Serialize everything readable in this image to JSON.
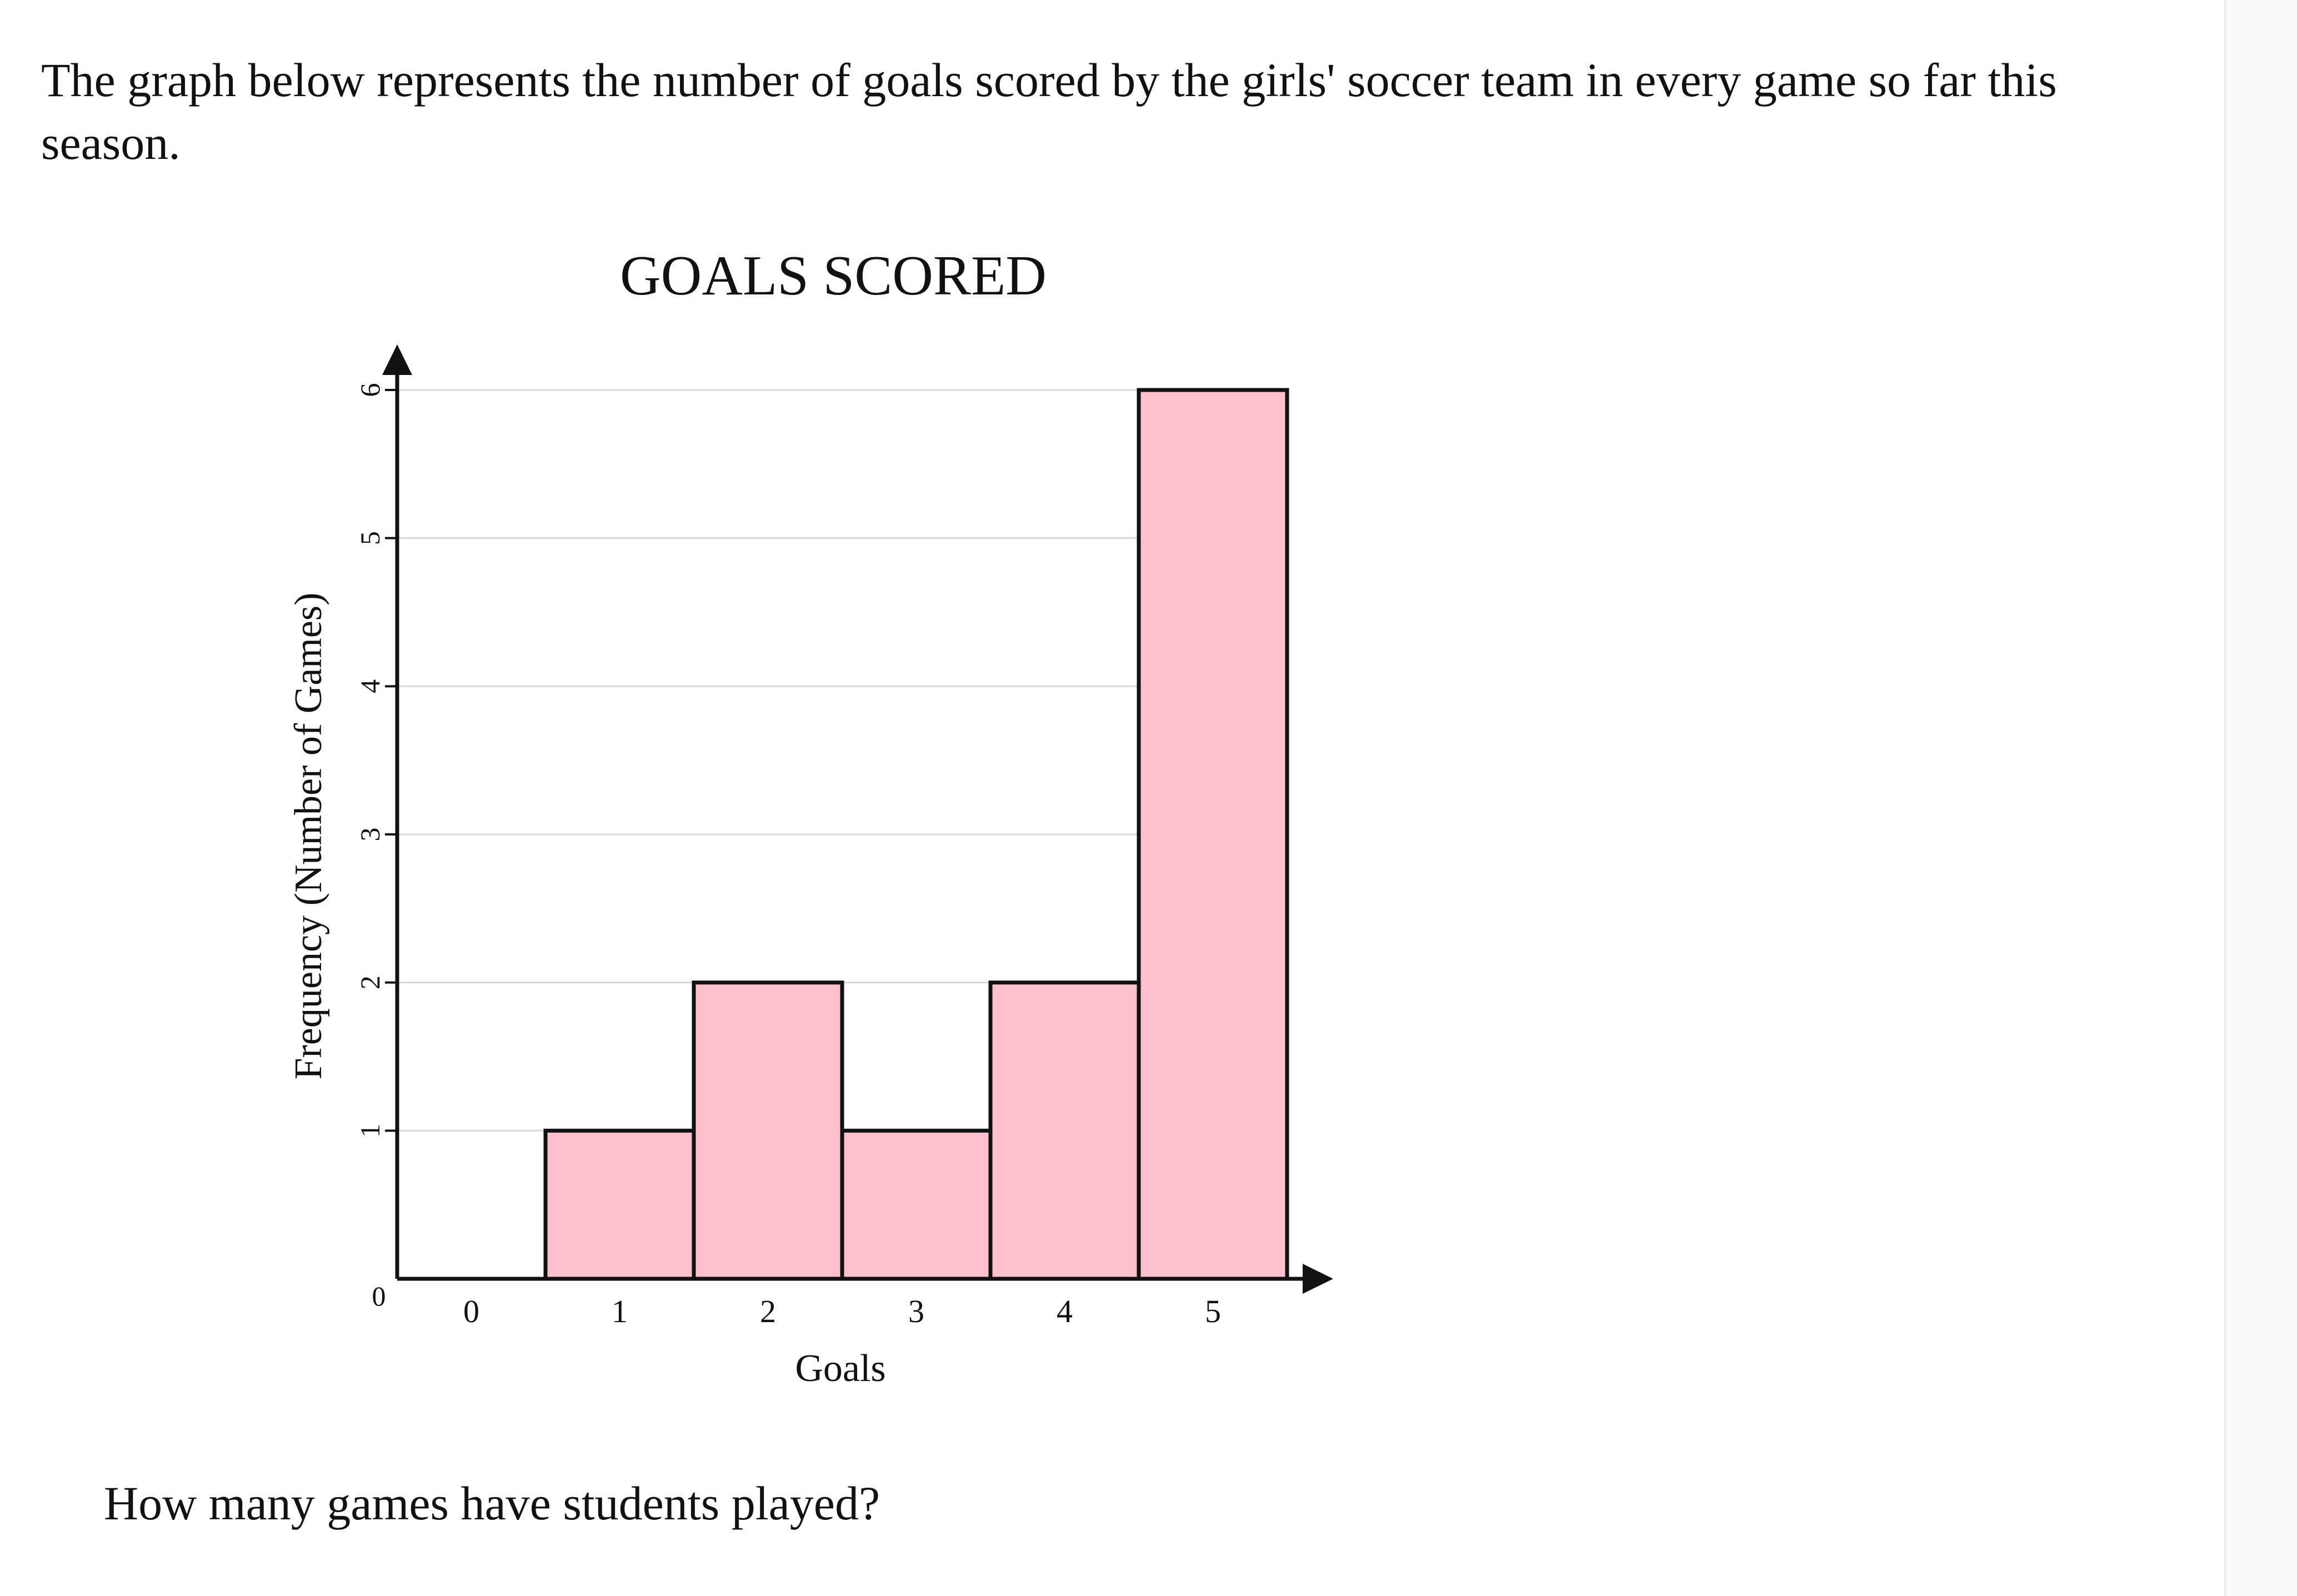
{
  "prompt": {
    "intro": "The graph below represents the number of goals scored by the girls' soccer team in every game so far this season.",
    "question": "How many games have students played?"
  },
  "chart_data": {
    "type": "bar",
    "title": "GOALS SCORED",
    "xlabel": "Goals",
    "ylabel": "Frequency (Number of Games)",
    "categories": [
      "0",
      "1",
      "2",
      "3",
      "4",
      "5"
    ],
    "values": [
      0,
      1,
      2,
      1,
      2,
      6
    ],
    "ylim": [
      0,
      6
    ],
    "yticks": [
      "0",
      "1",
      "2",
      "3",
      "4",
      "5",
      "6"
    ],
    "grid": true,
    "bar_fill": "#ffc0cb",
    "bar_stroke": "#111111",
    "grid_color": "#d9d9d9"
  }
}
